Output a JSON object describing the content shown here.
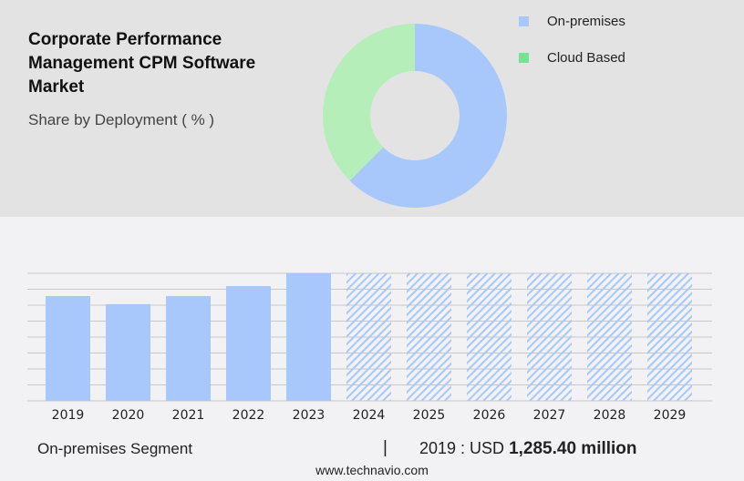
{
  "header": {
    "title": "Corporate Performance Management CPM Software Market",
    "subtitle": "Share by Deployment ( % )"
  },
  "legend": [
    {
      "label": "On-premises",
      "color": "#a8c8fc"
    },
    {
      "label": "Cloud Based",
      "color": "#74e493"
    }
  ],
  "chart_data": [
    {
      "type": "pie",
      "donut": true,
      "slices": [
        {
          "label": "On-premises",
          "value": 62.5,
          "color": "#a8c8fc"
        },
        {
          "label": "Cloud Based",
          "value": 37.5,
          "color": "#b5eeb9"
        }
      ]
    },
    {
      "type": "bar",
      "categories": [
        "2019",
        "2020",
        "2021",
        "2022",
        "2023",
        "2024",
        "2025",
        "2026",
        "2027",
        "2028",
        "2029"
      ],
      "values": [
        1285.4,
        1186,
        1285,
        1408,
        1565,
        null,
        null,
        null,
        null,
        null,
        null
      ],
      "forecast": [
        "2024",
        "2025",
        "2026",
        "2027",
        "2028",
        "2029"
      ],
      "ylim": [
        0,
        1565
      ],
      "grid": true,
      "color": "#a8c8fc"
    }
  ],
  "footer": {
    "segment": "On-premises Segment",
    "separator": "|",
    "year_label": "2019 : USD ",
    "value": "1,285.40 million",
    "site": "www.technavio.com"
  }
}
